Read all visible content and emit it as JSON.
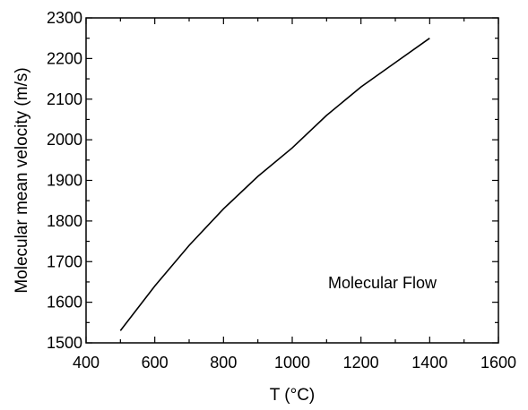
{
  "chart_data": {
    "type": "line",
    "title": "",
    "xlabel": "T (°C)",
    "ylabel": "Molecular mean velocity (m/s)",
    "xlim": [
      400,
      1600
    ],
    "ylim": [
      1500,
      2300
    ],
    "xticks": [
      400,
      600,
      800,
      1000,
      1200,
      1400,
      1600
    ],
    "yticks": [
      1500,
      1600,
      1700,
      1800,
      1900,
      2000,
      2100,
      2200,
      2300
    ],
    "grid": false,
    "legend": "none",
    "annotation": "Molecular Flow",
    "series": [
      {
        "color": "#000000",
        "x": [
          500,
          600,
          700,
          800,
          900,
          1000,
          1100,
          1200,
          1300,
          1400
        ],
        "y": [
          1530,
          1640,
          1740,
          1830,
          1910,
          1980,
          2060,
          2130,
          2190,
          2250
        ]
      }
    ]
  }
}
